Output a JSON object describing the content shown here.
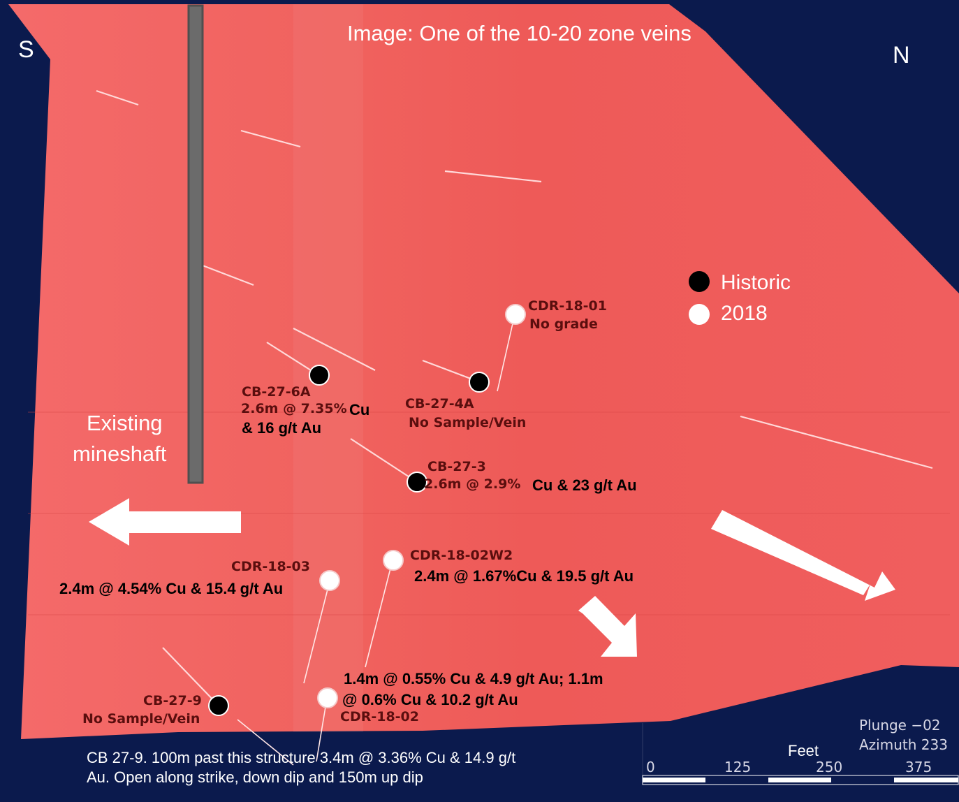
{
  "title": "Image: One of the 10-20 zone veins",
  "compass": {
    "south": "S",
    "north": "N"
  },
  "legend": {
    "historic": "Historic",
    "recent": "2018",
    "historic_color": "#000000",
    "recent_color": "#ffffff"
  },
  "mineshaft_label": [
    "Existing",
    "mineshaft"
  ],
  "holes": {
    "cdr_18_01": {
      "name": "CDR-18-01",
      "note": "No grade",
      "era": "2018"
    },
    "cb_27_6a": {
      "name": "CB-27-6A",
      "grade_a": "2.6m @ 7.35%",
      "grade_b": "Cu",
      "grade_c": "& 16 g/t Au",
      "era": "Historic"
    },
    "cb_27_4a": {
      "name": "CB-27-4A",
      "note": "No Sample/Vein",
      "era": "Historic"
    },
    "cb_27_3": {
      "name": "CB-27-3",
      "grade_a": "2.6m @ 2.9%",
      "grade_b": "Cu & 23 g/t Au",
      "era": "Historic"
    },
    "cdr_18_03": {
      "name": "CDR-18-03",
      "grade": "2.4m @ 4.54% Cu & 15.4 g/t Au",
      "era": "2018"
    },
    "cdr_18_02w2": {
      "name": "CDR-18-02W2",
      "grade": "2.4m @ 1.67%Cu & 19.5 g/t Au",
      "era": "2018"
    },
    "cdr_18_02": {
      "name": "CDR-18-02",
      "grade_line1": "1.4m @ 0.55% Cu & 4.9 g/t Au; 1.1m",
      "grade_line2": "@ 0.6% Cu & 10.2 g/t Au",
      "era": "2018"
    },
    "cb_27_9": {
      "name": "CB-27-9",
      "note": "No Sample/Vein",
      "era": "Historic"
    }
  },
  "footnote": [
    "CB 27-9. 100m past this structure 3.4m @ 3.36% Cu & 14.9 g/t",
    "Au. Open along strike, down dip and 150m up dip"
  ],
  "view": {
    "plunge": "Plunge −02",
    "azimuth": "Azimuth 233"
  },
  "scale_bar": {
    "unit": "Feet",
    "ticks": [
      "0",
      "125",
      "250",
      "375"
    ]
  },
  "colors": {
    "background": "#0b1a4d",
    "vein": "#f25c5c",
    "shaft": "#6b6b6b",
    "arrows": "#ffffff"
  }
}
